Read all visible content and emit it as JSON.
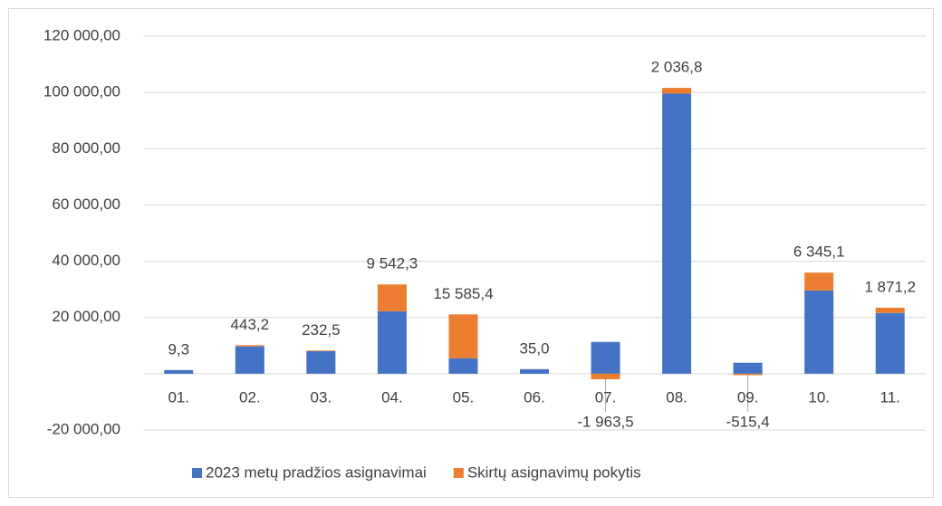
{
  "chart_data": {
    "type": "bar",
    "stacked": true,
    "categories": [
      "01.",
      "02.",
      "03.",
      "04.",
      "05.",
      "06.",
      "07.",
      "08.",
      "09.",
      "10.",
      "11."
    ],
    "series": [
      {
        "name": "2023 metų pradžios asignavimai",
        "color": "#4472c4",
        "values": [
          1300,
          9700,
          8000,
          22200,
          5500,
          1600,
          11300,
          99600,
          3900,
          29600,
          21600
        ]
      },
      {
        "name": "Skirtų asignavimų pokytis",
        "color": "#ed7d31",
        "values": [
          9.3,
          443.2,
          232.5,
          9542.3,
          15585.4,
          35.0,
          -1963.5,
          2036.8,
          -515.4,
          6345.1,
          1871.2
        ],
        "value_labels": [
          "9,3",
          "443,2",
          "232,5",
          "9 542,3",
          "15 585,4",
          "35,0",
          "-1 963,5",
          "2 036,8",
          "-515,4",
          "6 345,1",
          "1 871,2"
        ]
      }
    ],
    "ylim": [
      -20000,
      120000
    ],
    "yticks": [
      {
        "value": -20000,
        "label": "-20 000,00"
      },
      {
        "value": 0,
        "label": ""
      },
      {
        "value": 20000,
        "label": "20 000,00"
      },
      {
        "value": 40000,
        "label": "40 000,00"
      },
      {
        "value": 60000,
        "label": "60 000,00"
      },
      {
        "value": 80000,
        "label": "80 000,00"
      },
      {
        "value": 100000,
        "label": "100 000,00"
      },
      {
        "value": 120000,
        "label": "120 000,00"
      }
    ],
    "grid": true,
    "legend": "bottom"
  }
}
